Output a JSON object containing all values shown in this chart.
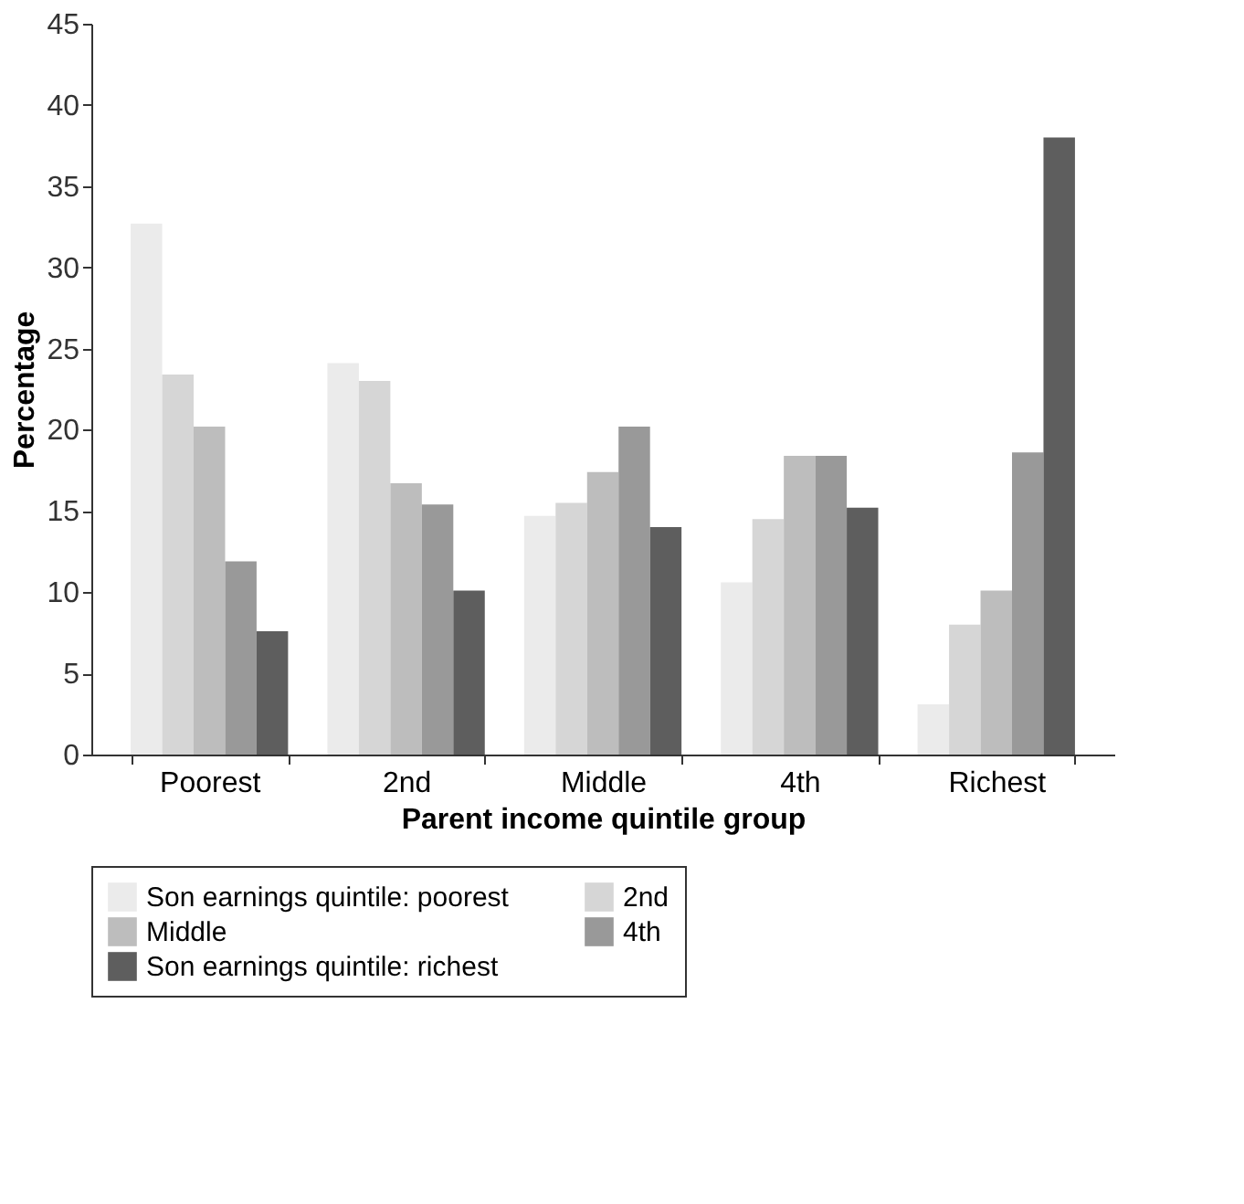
{
  "chart_data": {
    "type": "bar",
    "xlabel": "Parent income quintile group",
    "ylabel": "Percentage",
    "categories": [
      "Poorest",
      "2nd",
      "Middle",
      "4th",
      "Richest"
    ],
    "series": [
      {
        "name": "Son earnings quintile: poorest",
        "color": "#ebebeb",
        "values": [
          32.7,
          24.1,
          14.7,
          10.6,
          3.1
        ]
      },
      {
        "name": "2nd",
        "color": "#d6d6d6",
        "values": [
          23.4,
          23.0,
          15.5,
          14.5,
          8.0
        ]
      },
      {
        "name": "Middle",
        "color": "#bdbdbd",
        "values": [
          20.2,
          16.7,
          17.4,
          18.4,
          10.1
        ]
      },
      {
        "name": "4th",
        "color": "#999999",
        "values": [
          11.9,
          15.4,
          20.2,
          18.4,
          18.6
        ]
      },
      {
        "name": "Son earnings quintile: richest",
        "color": "#5e5e5e",
        "values": [
          7.6,
          10.1,
          14.0,
          15.2,
          38.0
        ]
      }
    ],
    "ylim": [
      0,
      45
    ],
    "yticks": [
      0,
      5,
      10,
      15,
      20,
      25,
      30,
      35,
      40,
      45
    ],
    "grid": false,
    "legend": "bottom"
  }
}
